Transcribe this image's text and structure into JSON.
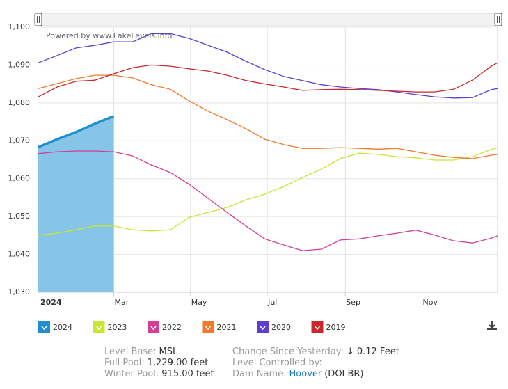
{
  "chart_data": {
    "type": "line",
    "watermark": "Powered by www.LakeLevels.info",
    "x": [
      0,
      15,
      30,
      45,
      60,
      75,
      90,
      105,
      120,
      135,
      150,
      165,
      180,
      195,
      210,
      225,
      240,
      255,
      270,
      285,
      300,
      315,
      330,
      345,
      360,
      365
    ],
    "xlim": [
      0,
      365
    ],
    "xticks": [
      {
        "value": 60,
        "label": "Mar"
      },
      {
        "value": 121,
        "label": "May"
      },
      {
        "value": 182,
        "label": "Jul"
      },
      {
        "value": 244,
        "label": "Sep"
      },
      {
        "value": 305,
        "label": "Nov"
      }
    ],
    "year_label": "2024",
    "ylim": [
      1030,
      1100
    ],
    "yticks": [
      {
        "value": 1030,
        "label": "1,030"
      },
      {
        "value": 1040,
        "label": "1,040"
      },
      {
        "value": 1050,
        "label": "1,050"
      },
      {
        "value": 1060,
        "label": "1,060"
      },
      {
        "value": 1070,
        "label": "1,070"
      },
      {
        "value": 1080,
        "label": "1,080"
      },
      {
        "value": 1090,
        "label": "1,090"
      },
      {
        "value": 1100,
        "label": "1,100"
      }
    ],
    "grid": true,
    "series": [
      {
        "name": "2024",
        "color": "#1f8fcf",
        "fill": "#86c5e8",
        "area": true,
        "values": [
          1068.3,
          1070.4,
          1072.3,
          1074.5,
          1076.5,
          null,
          null,
          null,
          null,
          null,
          null,
          null,
          null,
          null,
          null,
          null,
          null,
          null,
          null,
          null,
          null,
          null,
          null,
          null,
          null,
          null
        ]
      },
      {
        "name": "2023",
        "color": "#c8e632",
        "values": [
          1045.1,
          1045.6,
          1046.5,
          1047.5,
          1047.5,
          1046.5,
          1046.2,
          1046.5,
          1049.8,
          1051.1,
          1052.4,
          1054.4,
          1055.9,
          1057.9,
          1060.3,
          1062.5,
          1065.3,
          1066.7,
          1066.4,
          1065.8,
          1065.5,
          1064.9,
          1064.9,
          1065.8,
          1067.7,
          1068.2
        ]
      },
      {
        "name": "2022",
        "color": "#d43f96",
        "values": [
          1066.6,
          1067.1,
          1067.3,
          1067.3,
          1067.1,
          1066.0,
          1063.6,
          1061.6,
          1058.5,
          1054.8,
          1051.1,
          1047.5,
          1044.1,
          1042.5,
          1041.0,
          1041.4,
          1043.8,
          1044.1,
          1044.9,
          1045.6,
          1046.4,
          1045.1,
          1043.6,
          1043.0,
          1044.3,
          1044.9
        ]
      },
      {
        "name": "2021",
        "color": "#f2782b",
        "values": [
          1083.8,
          1085.1,
          1086.4,
          1087.3,
          1087.3,
          1086.6,
          1084.8,
          1083.6,
          1080.5,
          1077.8,
          1075.6,
          1073.2,
          1070.4,
          1069.0,
          1068.0,
          1068.0,
          1068.2,
          1068.0,
          1067.8,
          1068.0,
          1067.1,
          1066.2,
          1065.6,
          1065.3,
          1066.2,
          1066.4
        ]
      },
      {
        "name": "2020",
        "color": "#5c3fd1",
        "values": [
          1090.6,
          1092.5,
          1094.5,
          1095.2,
          1096.1,
          1096.1,
          1098.3,
          1098.3,
          1097.0,
          1095.2,
          1093.4,
          1091.0,
          1088.8,
          1087.0,
          1085.9,
          1084.8,
          1084.2,
          1083.8,
          1083.5,
          1082.9,
          1082.2,
          1081.6,
          1081.3,
          1081.4,
          1083.5,
          1083.8
        ]
      },
      {
        "name": "2019",
        "color": "#c8282d",
        "values": [
          1081.6,
          1084.2,
          1085.7,
          1086.0,
          1087.7,
          1089.3,
          1090.0,
          1089.7,
          1089.0,
          1088.4,
          1087.3,
          1085.9,
          1085.0,
          1084.2,
          1083.3,
          1083.5,
          1083.6,
          1083.5,
          1083.3,
          1083.1,
          1082.9,
          1082.9,
          1083.6,
          1086.0,
          1089.7,
          1090.6
        ]
      }
    ]
  },
  "info": {
    "level_base": {
      "label": "Level Base:",
      "value": "MSL"
    },
    "full_pool": {
      "label": "Full Pool:",
      "value": "1,229.00 feet"
    },
    "winter_pool": {
      "label": "Winter Pool:",
      "value": "915.00 feet"
    },
    "change": {
      "label": "Change Since Yesterday:",
      "value": "↓ 0.12 Feet"
    },
    "controlled": {
      "label": "Level Controlled by:"
    },
    "dam": {
      "label": "Dam Name:",
      "value": "Hoover",
      "owner": "(DOI BR)"
    }
  }
}
